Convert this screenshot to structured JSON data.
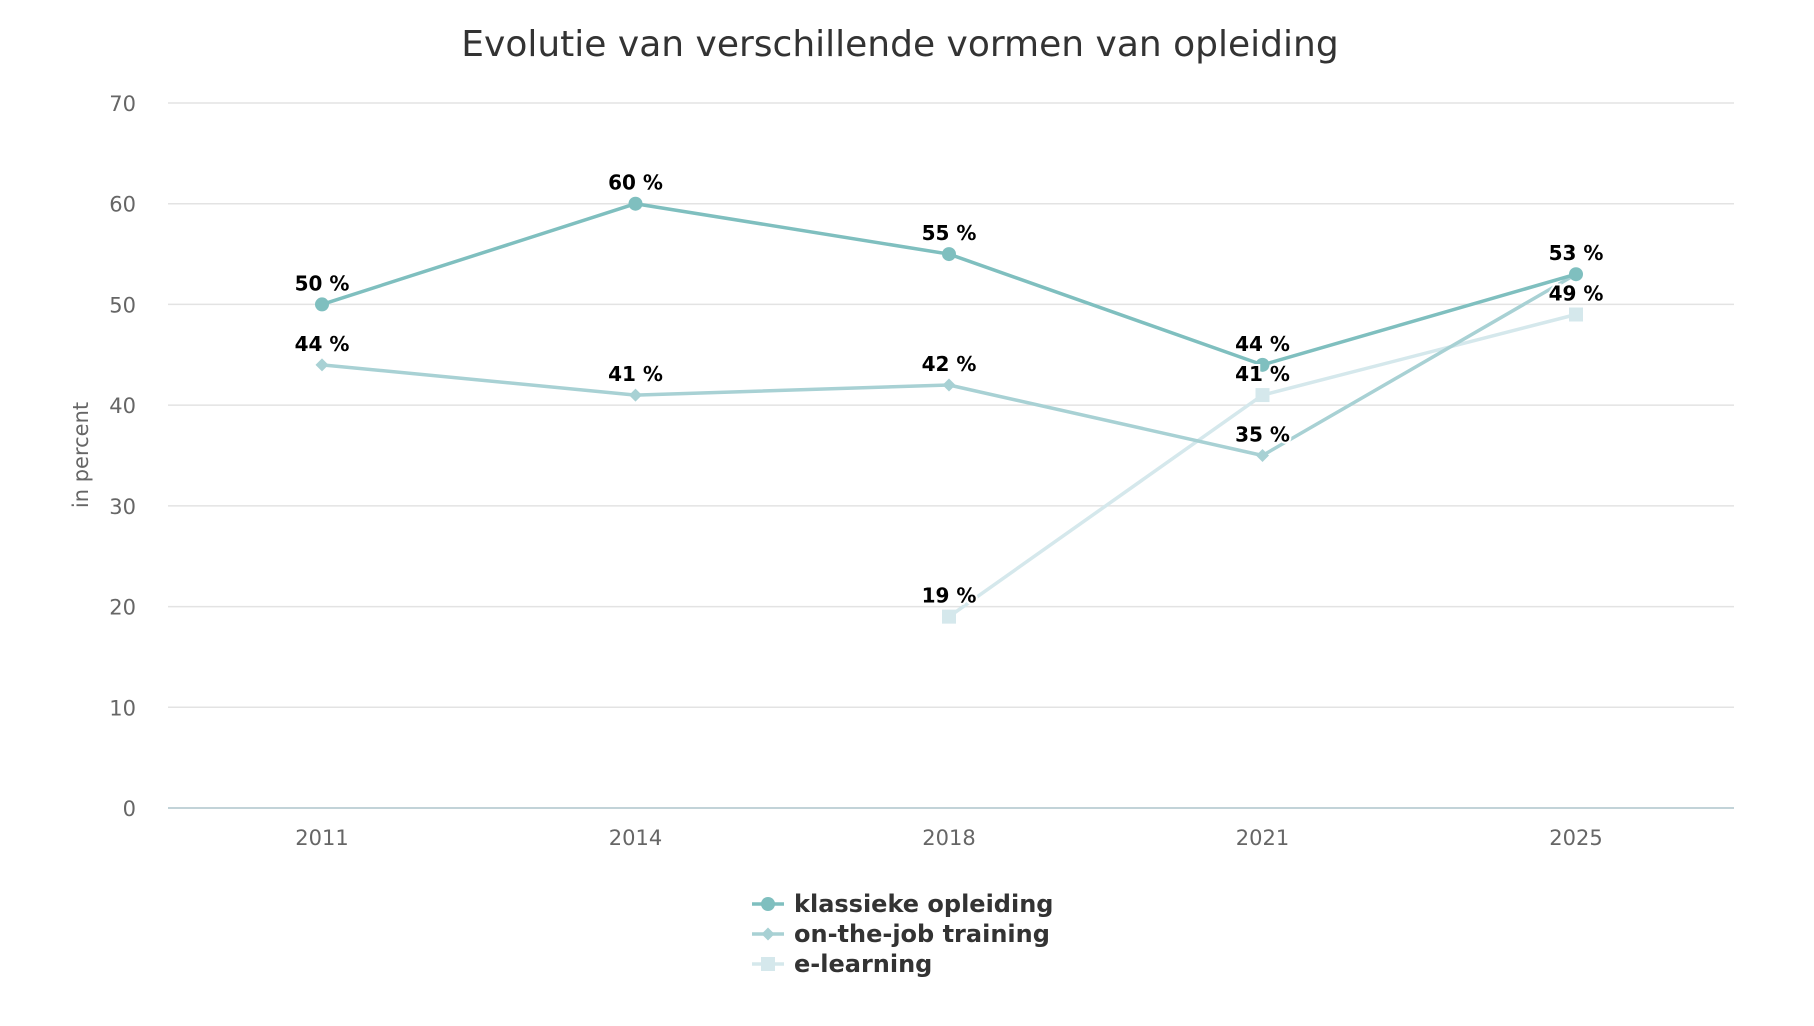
{
  "chart_data": {
    "type": "line",
    "title": "Evolutie van verschillende vormen van opleiding",
    "xlabel": "",
    "ylabel": "in percent",
    "categories": [
      "2011",
      "2014",
      "2018",
      "2021",
      "2025"
    ],
    "ylim": [
      0,
      70
    ],
    "yticks": [
      0,
      10,
      20,
      30,
      40,
      50,
      60,
      70
    ],
    "grid": true,
    "legend_position": "bottom-center",
    "value_suffix": " %",
    "series": [
      {
        "name": "klassieke opleiding",
        "marker": "circle",
        "color": "#7fbfbf",
        "values": [
          50,
          60,
          55,
          44,
          53
        ]
      },
      {
        "name": "on-the-job training",
        "marker": "diamond",
        "color": "#a8d1d4",
        "values": [
          44,
          41,
          42,
          35,
          53
        ]
      },
      {
        "name": "e-learning",
        "marker": "square",
        "color": "#d5e8ec",
        "values": [
          null,
          null,
          19,
          41,
          49
        ]
      }
    ]
  }
}
